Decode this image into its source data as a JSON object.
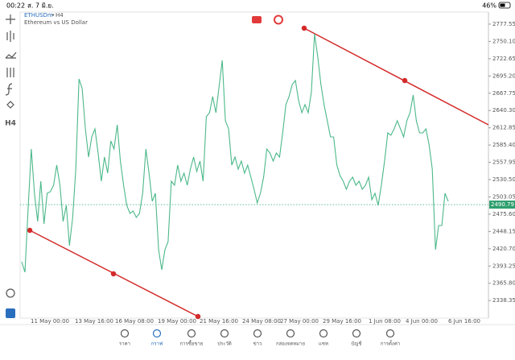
{
  "status_bar": {
    "time": "00:22",
    "date": "ส. 7 มิ.ย.",
    "battery": "46%"
  },
  "header": {
    "symbol": "ETHUSDm",
    "timeframe": "H4",
    "description": "Ethereum vs US Dollar"
  },
  "toolbar": {
    "timeframe_button": "H4"
  },
  "chart_data": {
    "type": "line",
    "color": "#4cb88a",
    "values": [
      2399.9,
      2383.3,
      2483.2,
      2579.2,
      2508.8,
      2464.0,
      2528.0,
      2460.1,
      2508.8,
      2511.3,
      2521.6,
      2553.6,
      2521.6,
      2464.0,
      2489.6,
      2425.6,
      2470.4,
      2547.2,
      2690.5,
      2675.2,
      2611.2,
      2566.4,
      2598.4,
      2611.2,
      2572.8,
      2528.0,
      2566.4,
      2540.8,
      2592.0,
      2579.2,
      2617.6,
      2560.0,
      2521.6,
      2489.6,
      2476.8,
      2480.6,
      2470.4,
      2476.8,
      2508.8,
      2579.2,
      2540.8,
      2496.0,
      2508.8,
      2419.2,
      2387.2,
      2419.2,
      2432.0,
      2528.0,
      2521.6,
      2553.6,
      2528.0,
      2540.8,
      2521.6,
      2547.2,
      2566.4,
      2543.4,
      2560.0,
      2528.0,
      2630.4,
      2636.8,
      2662.4,
      2636.8,
      2677.8,
      2720.0,
      2624.0,
      2611.2,
      2553.6,
      2566.4,
      2547.2,
      2560.0,
      2540.8,
      2553.6,
      2534.4,
      2515.2,
      2493.4,
      2508.8,
      2534.4,
      2579.2,
      2572.8,
      2560.0,
      2572.8,
      2566.4,
      2604.8,
      2649.6,
      2662.4,
      2681.6,
      2688.0,
      2656.0,
      2636.8,
      2649.6,
      2636.8,
      2668.8,
      2762.2,
      2726.4,
      2681.6,
      2649.6,
      2624.0,
      2598.4,
      2598.4,
      2553.6,
      2537.0,
      2528.0,
      2515.2,
      2528.0,
      2534.4,
      2521.6,
      2528.0,
      2515.2,
      2521.6,
      2534.4,
      2498.5,
      2508.8,
      2489.6,
      2521.6,
      2560.0,
      2604.8,
      2601.0,
      2611.2,
      2624.0,
      2611.2,
      2598.4,
      2624.0,
      2636.8,
      2664.9,
      2624.0,
      2604.8,
      2604.8,
      2611.2,
      2585.6,
      2547.2,
      2419.2,
      2457.6,
      2457.6,
      2508.8,
      2496.0
    ],
    "current_price": {
      "value": 2490.79,
      "label": "2490.79"
    },
    "ylim": [
      2310.4,
      2796.7
    ],
    "yticks": [
      2777.55,
      {
        "value": 2750.1,
        "label": "2750.10"
      },
      2722.65,
      {
        "value": 2695.2,
        "label": "2695.20"
      },
      2667.75,
      {
        "value": 2640.3,
        "label": "2640.30"
      },
      2612.85,
      {
        "value": 2585.4,
        "label": "2585.40"
      },
      2557.95,
      {
        "value": 2530.5,
        "label": "2530.50"
      },
      2503.05,
      {
        "value": 2475.6,
        "label": "2475.60"
      },
      2448.15,
      {
        "value": 2420.7,
        "label": "2420.70"
      },
      2393.25,
      {
        "value": 2365.8,
        "label": "2365.80"
      },
      2338.35
    ],
    "x_labels": [
      "11 May 00:00",
      "13 May 16:00",
      "16 May 08:00",
      "19 May 00:00",
      "21 May 16:00",
      "24 May 08:00",
      "27 May 00:00",
      "29 May 16:00",
      "1 Jun 08:00",
      "4 Jun 00:00",
      "6 Jun 16:00"
    ]
  },
  "nav": [
    "ราคา",
    "กราฟ",
    "การซื้อขาย",
    "ประวัติ",
    "ข่าว",
    "กล่องจดหมาย",
    "แชท",
    "บัญชี",
    "การตั้งค่า"
  ]
}
